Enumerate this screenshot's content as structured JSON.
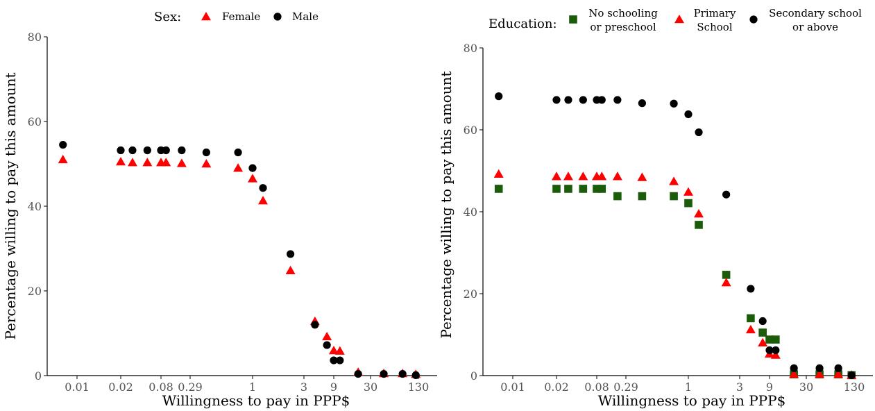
{
  "chart_data": [
    {
      "type": "scatter",
      "xlabel": "Willingness to pay in PPP$",
      "ylabel": "Percentage willing to pay this amount",
      "x_scale": "log",
      "ylim": [
        0,
        80
      ],
      "y_ticks": [
        0,
        20,
        40,
        60,
        80
      ],
      "x_tick_labels": [
        "0.01",
        "0.02",
        "0.08",
        "0.29",
        "1",
        "3",
        "9",
        "30",
        "130"
      ],
      "legend_title": "Sex:",
      "legend_position": "top",
      "series": [
        {
          "name": "Female",
          "color": "#ff0000",
          "marker": "triangle",
          "points": [
            [
              0.008,
              51
            ],
            [
              0.02,
              50.5
            ],
            [
              0.03,
              50.3
            ],
            [
              0.05,
              50.3
            ],
            [
              0.08,
              50.3
            ],
            [
              0.1,
              50.3
            ],
            [
              0.2,
              50.1
            ],
            [
              0.4,
              50
            ],
            [
              0.75,
              49
            ],
            [
              1,
              46.5
            ],
            [
              1.25,
              41.3
            ],
            [
              2.25,
              24.8
            ],
            [
              4.5,
              12.8
            ],
            [
              7,
              9.2
            ],
            [
              9,
              5.9
            ],
            [
              11,
              5.8
            ],
            [
              20,
              0.8
            ],
            [
              45,
              0.5
            ],
            [
              80,
              0.5
            ],
            [
              120,
              0.3
            ]
          ]
        },
        {
          "name": "Male",
          "color": "#000000",
          "marker": "circle",
          "points": [
            [
              0.008,
              54.5
            ],
            [
              0.02,
              53.2
            ],
            [
              0.03,
              53.2
            ],
            [
              0.05,
              53.2
            ],
            [
              0.08,
              53.2
            ],
            [
              0.1,
              53.2
            ],
            [
              0.2,
              53.2
            ],
            [
              0.4,
              52.7
            ],
            [
              0.75,
              52.7
            ],
            [
              1,
              49
            ],
            [
              1.25,
              44.3
            ],
            [
              2.25,
              28.7
            ],
            [
              4.5,
              12
            ],
            [
              7,
              7.2
            ],
            [
              9,
              3.6
            ],
            [
              11,
              3.6
            ],
            [
              20,
              0.4
            ],
            [
              45,
              0.4
            ],
            [
              80,
              0.4
            ],
            [
              120,
              0.1
            ]
          ]
        }
      ]
    },
    {
      "type": "scatter",
      "xlabel": "Willingness to pay in PPP$",
      "ylabel": "Percentage willing to pay this amount",
      "x_scale": "log",
      "ylim": [
        0,
        80
      ],
      "y_ticks": [
        0,
        20,
        40,
        60,
        80
      ],
      "x_tick_labels": [
        "0.01",
        "0.02",
        "0.08",
        "0.29",
        "1",
        "3",
        "9",
        "30",
        "130"
      ],
      "legend_title": "Education:",
      "legend_position": "top",
      "series": [
        {
          "name_lines": [
            "No schooling",
            "or preschool"
          ],
          "color": "#1a5c0a",
          "marker": "square",
          "points": [
            [
              0.008,
              45.6
            ],
            [
              0.02,
              45.6
            ],
            [
              0.03,
              45.6
            ],
            [
              0.05,
              45.6
            ],
            [
              0.08,
              45.6
            ],
            [
              0.1,
              45.6
            ],
            [
              0.2,
              43.8
            ],
            [
              0.4,
              43.8
            ],
            [
              0.75,
              43.8
            ],
            [
              1,
              42.1
            ],
            [
              1.25,
              36.8
            ],
            [
              2.25,
              24.6
            ],
            [
              4.5,
              14
            ],
            [
              7,
              10.5
            ],
            [
              9,
              8.8
            ],
            [
              11,
              8.8
            ],
            [
              20,
              0.3
            ],
            [
              45,
              0.3
            ],
            [
              80,
              0.3
            ],
            [
              120,
              0.1
            ]
          ]
        },
        {
          "name_lines": [
            "Primary",
            "School"
          ],
          "color": "#ff0000",
          "marker": "triangle",
          "points": [
            [
              0.008,
              49.2
            ],
            [
              0.02,
              48.6
            ],
            [
              0.03,
              48.6
            ],
            [
              0.05,
              48.6
            ],
            [
              0.08,
              48.6
            ],
            [
              0.1,
              48.6
            ],
            [
              0.2,
              48.6
            ],
            [
              0.4,
              48.4
            ],
            [
              0.75,
              47.4
            ],
            [
              1,
              44.8
            ],
            [
              1.25,
              39.5
            ],
            [
              2.25,
              22.7
            ],
            [
              4.5,
              11.2
            ],
            [
              7,
              8
            ],
            [
              9,
              5.3
            ],
            [
              11,
              5
            ],
            [
              20,
              0.3
            ],
            [
              45,
              0.3
            ],
            [
              80,
              0.3
            ],
            [
              120,
              0.1
            ]
          ]
        },
        {
          "name_lines": [
            "Secondary school",
            "or above"
          ],
          "color": "#000000",
          "marker": "circle",
          "points": [
            [
              0.008,
              68.2
            ],
            [
              0.02,
              67.3
            ],
            [
              0.03,
              67.3
            ],
            [
              0.05,
              67.3
            ],
            [
              0.08,
              67.3
            ],
            [
              0.1,
              67.3
            ],
            [
              0.2,
              67.3
            ],
            [
              0.4,
              66.5
            ],
            [
              0.75,
              66.4
            ],
            [
              1,
              63.8
            ],
            [
              1.25,
              59.4
            ],
            [
              2.25,
              44.2
            ],
            [
              4.5,
              21.2
            ],
            [
              7,
              13.3
            ],
            [
              9,
              6.2
            ],
            [
              11,
              6.2
            ],
            [
              20,
              1.8
            ],
            [
              45,
              1.8
            ],
            [
              80,
              1.8
            ],
            [
              120,
              0.1
            ]
          ]
        }
      ]
    }
  ]
}
